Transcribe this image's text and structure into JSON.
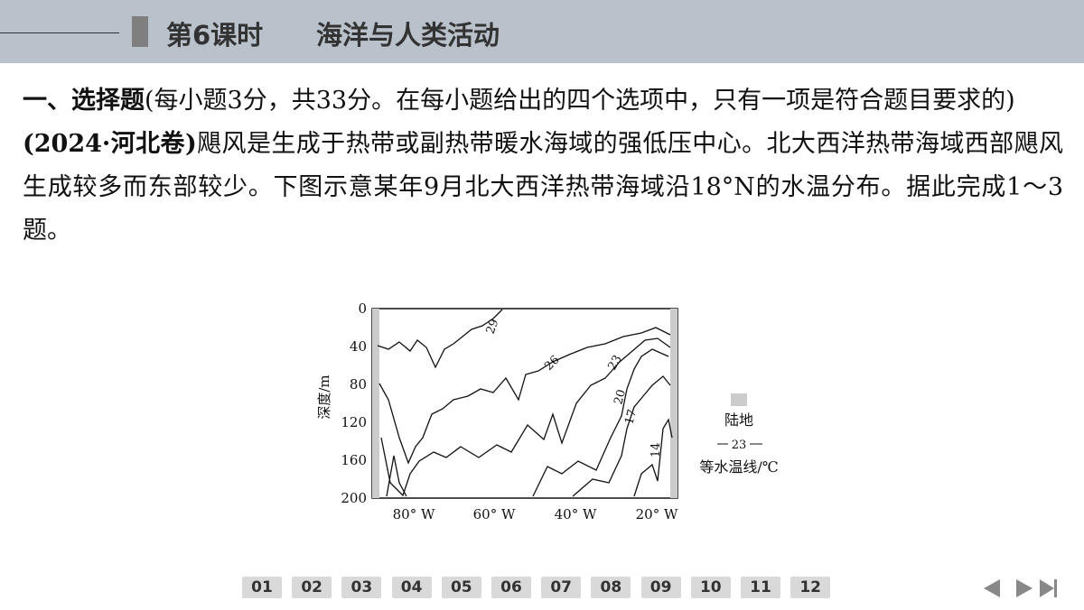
{
  "header": {
    "lesson": "第6课时",
    "title": "海洋与人类活动"
  },
  "question": {
    "heading": "一、选择题",
    "heading_note": "(每小题3分，共33分。在每小题给出的四个选项中，只有一项是符合题目要求的)",
    "source": "(2024·河北卷)",
    "intro": "飓风是生成于热带或副热带暖水海域的强低压中心。北大西洋热带海域西部飓风生成较多而东部较少。下图示意某年9月北大西洋热带海域沿18°N的水温分布。据此完成1～3题。"
  },
  "figure": {
    "y_label": "深度/m",
    "y_ticks": [
      "0",
      "40",
      "80",
      "120",
      "160",
      "200"
    ],
    "x_ticks": [
      "80° W",
      "60° W",
      "40° W",
      "20° W"
    ],
    "contour_labels": [
      "29",
      "26",
      "23",
      "20",
      "17",
      "14"
    ],
    "legend": {
      "land": "陆地",
      "isotherm_sample": "23",
      "isotherm": "等水温线/℃"
    }
  },
  "nav": {
    "pages": [
      "01",
      "02",
      "03",
      "04",
      "05",
      "06",
      "07",
      "08",
      "09",
      "10",
      "11",
      "12"
    ]
  }
}
